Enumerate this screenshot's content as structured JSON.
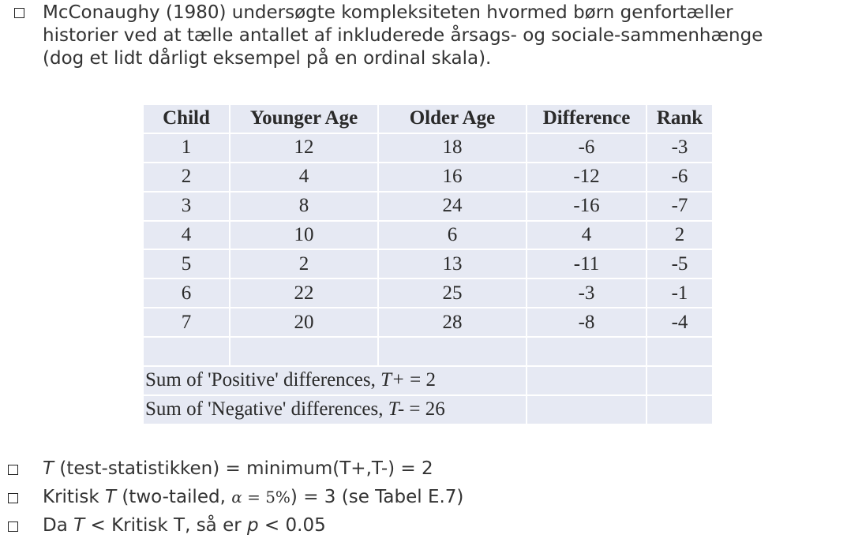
{
  "intro": {
    "lines": [
      "McConaughy (1980) undersøgte kompleksiteten hvormed børn genfortæller",
      "historier ved at tælle antallet af inkluderede årsags- og sociale-sammenhænge",
      "(dog et lidt dårligt eksempel på en ordinal skala)."
    ]
  },
  "table": {
    "headers": [
      "Child",
      "Younger Age",
      "Older Age",
      "Difference",
      "Rank"
    ],
    "rows": [
      [
        "1",
        "12",
        "18",
        "-6",
        "-3"
      ],
      [
        "2",
        "4",
        "16",
        "-12",
        "-6"
      ],
      [
        "3",
        "8",
        "24",
        "-16",
        "-7"
      ],
      [
        "4",
        "10",
        "6",
        "4",
        "2"
      ],
      [
        "5",
        "2",
        "13",
        "-11",
        "-5"
      ],
      [
        "6",
        "22",
        "25",
        "-3",
        "-1"
      ],
      [
        "7",
        "20",
        "28",
        "-8",
        "-4"
      ]
    ],
    "sum_positive": {
      "prefix": "Sum of 'Positive' differences, ",
      "symbol": "T+",
      "suffix": " = 2"
    },
    "sum_negative": {
      "prefix": "Sum of 'Negative' differences, ",
      "symbol": "T-",
      "suffix": " = 26"
    }
  },
  "bullets": {
    "test_statistic": {
      "symbol": "T",
      "text": " (test-statistikken) = minimum(T+,T-) = 2"
    },
    "critical": {
      "prefix": "Kritisk ",
      "symbol": "T",
      "middle": " (two-tailed, ",
      "alpha": "α",
      "alpha_eq": " = 5%",
      "suffix": ") = 3 (se Tabel E.7)"
    },
    "conclusion": {
      "prefix": "Da ",
      "symbol": "T",
      "middle": " < Kritisk T, så er ",
      "p": "p",
      "suffix": " < 0.05"
    }
  }
}
